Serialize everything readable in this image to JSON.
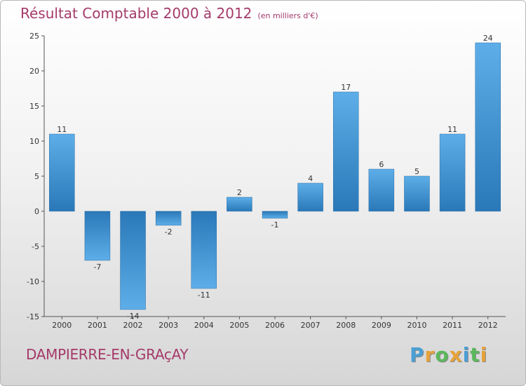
{
  "chart_data": {
    "type": "bar",
    "title": "Résultat Comptable 2000 à 2012",
    "subtitle": "(en milliers d'€)",
    "categories": [
      "2000",
      "2001",
      "2002",
      "2003",
      "2004",
      "2005",
      "2006",
      "2007",
      "2008",
      "2009",
      "2010",
      "2011",
      "2012"
    ],
    "values": [
      11,
      -7,
      -14,
      -2,
      -11,
      2,
      -1,
      4,
      17,
      6,
      5,
      11,
      24
    ],
    "ylim": [
      -15,
      25
    ],
    "yticks": [
      25,
      20,
      15,
      10,
      5,
      0,
      -5,
      -10,
      -15
    ],
    "xlabel": "",
    "ylabel": "",
    "grid": false,
    "bar_color": "#3d8fd3"
  },
  "commune": "DAMPIERRE-EN-GRAçAY",
  "brand": {
    "letters": [
      "P",
      "r",
      "o",
      "x",
      "i",
      "t",
      "i"
    ],
    "colors": [
      "#4a9fd4",
      "#e8a23a",
      "#5cb85c",
      "#e8a23a",
      "#4a9fd4",
      "#5cb85c",
      "#e8a23a"
    ]
  }
}
